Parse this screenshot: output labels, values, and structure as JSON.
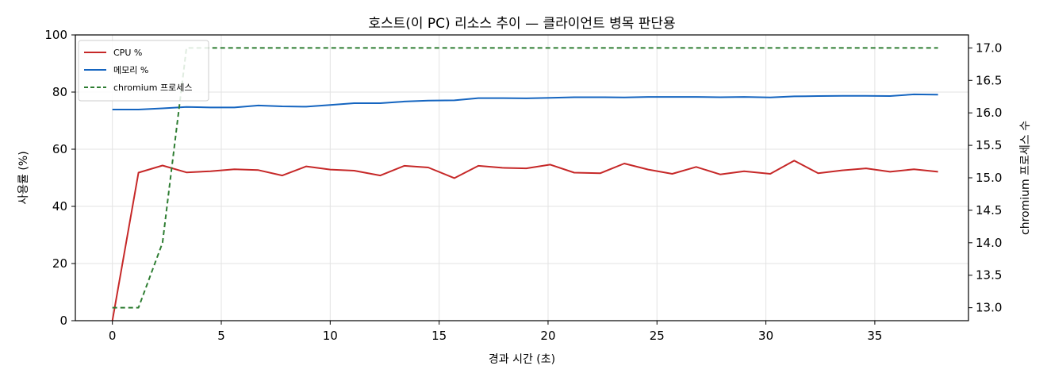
{
  "chart_data": {
    "type": "line",
    "title": "호스트(이 PC) 리소스 추이 — 클라이언트 병목 판단용",
    "xlabel": "경과 시간 (초)",
    "ylabel": "사용률 (%)",
    "y2label": "chromium 프로세스 수",
    "xlim": [
      -1.7,
      39.3
    ],
    "ylim": [
      0,
      100
    ],
    "y2lim": [
      12.8,
      17.2
    ],
    "xticks": [
      "0",
      "5",
      "10",
      "15",
      "20",
      "25",
      "30",
      "35"
    ],
    "yticks": [
      "0",
      "20",
      "40",
      "60",
      "80",
      "100"
    ],
    "y2ticks": [
      "13.0",
      "13.5",
      "14.0",
      "14.5",
      "15.0",
      "15.5",
      "16.0",
      "16.5",
      "17.0"
    ],
    "grid": true,
    "legend_position": "top-left",
    "series": [
      {
        "name": "CPU %",
        "axis": "left",
        "color": "#c62828",
        "style": "solid",
        "x": [
          0,
          1.2,
          2.3,
          3.4,
          4.5,
          5.6,
          6.7,
          7.8,
          8.9,
          10.0,
          11.1,
          12.3,
          13.4,
          14.5,
          15.7,
          16.8,
          17.9,
          19.0,
          20.1,
          21.2,
          22.4,
          23.5,
          24.6,
          25.7,
          26.8,
          27.9,
          29.0,
          30.2,
          31.3,
          32.4,
          33.5,
          34.6,
          35.7,
          36.8,
          37.9
        ],
        "values": [
          0,
          51.8,
          54.3,
          51.9,
          52.3,
          53.0,
          52.7,
          50.8,
          54.0,
          52.9,
          52.5,
          50.8,
          54.2,
          53.6,
          49.9,
          54.2,
          53.5,
          53.3,
          54.6,
          51.8,
          51.6,
          55.0,
          52.9,
          51.4,
          53.8,
          51.2,
          52.3,
          51.4,
          56.0,
          51.6,
          52.6,
          53.3,
          52.1,
          53.0,
          52.1
        ]
      },
      {
        "name": "메모리 %",
        "axis": "left",
        "color": "#1565c0",
        "style": "solid",
        "x": [
          0,
          1.2,
          2.3,
          3.4,
          4.5,
          5.6,
          6.7,
          7.8,
          8.9,
          10.0,
          11.1,
          12.3,
          13.4,
          14.5,
          15.7,
          16.8,
          17.9,
          19.0,
          20.1,
          21.2,
          22.4,
          23.5,
          24.6,
          25.7,
          26.8,
          27.9,
          29.0,
          30.2,
          31.3,
          32.4,
          33.5,
          34.6,
          35.7,
          36.8,
          37.9
        ],
        "values": [
          73.9,
          73.9,
          74.3,
          74.8,
          74.6,
          74.6,
          75.3,
          75.0,
          74.9,
          75.5,
          76.1,
          76.1,
          76.7,
          77.0,
          77.1,
          77.9,
          77.9,
          77.8,
          78.0,
          78.2,
          78.2,
          78.1,
          78.3,
          78.3,
          78.3,
          78.2,
          78.3,
          78.1,
          78.5,
          78.6,
          78.7,
          78.7,
          78.6,
          79.2,
          79.1
        ]
      },
      {
        "name": "chromium 프로세스",
        "axis": "right",
        "color": "#2e7d32",
        "style": "dashed",
        "x": [
          0,
          1.2,
          2.3,
          3.4,
          37.9
        ],
        "values": [
          13,
          13,
          14,
          17,
          17
        ]
      }
    ]
  }
}
